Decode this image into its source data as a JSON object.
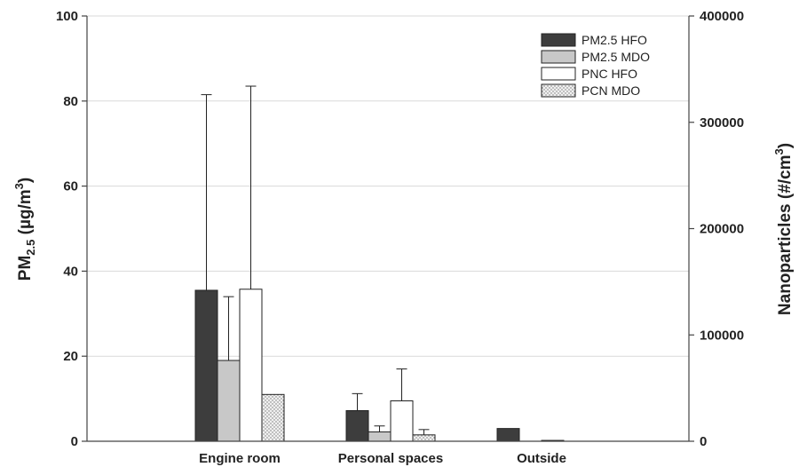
{
  "chart_data": {
    "type": "bar",
    "categories": [
      "Engine room",
      "Personal spaces",
      "Outside"
    ],
    "left_axis": {
      "label_main": "PM",
      "label_sub": "2.5",
      "label_unit": " (µg/m",
      "label_sup": "3",
      "label_close": ")",
      "ylim": [
        0,
        100
      ],
      "ticks": [
        0,
        20,
        40,
        60,
        80,
        100
      ]
    },
    "right_axis": {
      "label_main": "Nanoparticles (#/cm",
      "label_sup": "3",
      "label_close": ")",
      "ylim": [
        0,
        400000
      ],
      "ticks": [
        0,
        100000,
        200000,
        300000,
        400000
      ]
    },
    "series": [
      {
        "name": "PM2.5 HFO",
        "axis": "left",
        "fill": "#3d3d3d",
        "pattern": "solid",
        "values": [
          35.5,
          7.2,
          3.0
        ],
        "errors": [
          81.5,
          11.2,
          null
        ]
      },
      {
        "name": "PM2.5 MDO",
        "axis": "left",
        "fill": "#c8c8c8",
        "pattern": "solid",
        "values": [
          19.0,
          2.2,
          0
        ],
        "errors": [
          34.0,
          3.6,
          null
        ]
      },
      {
        "name": "PNC HFO",
        "axis": "right",
        "fill": "#ffffff",
        "pattern": "solid",
        "values": [
          143000,
          38000,
          800
        ],
        "errors": [
          334000,
          68000,
          null
        ]
      },
      {
        "name": "PCN MDO",
        "axis": "right",
        "fill": "#ebebeb",
        "pattern": "dots",
        "values": [
          44000,
          6000,
          0
        ],
        "errors": [
          null,
          11000,
          null
        ]
      }
    ],
    "grid": true,
    "legend_position": "top-right"
  }
}
